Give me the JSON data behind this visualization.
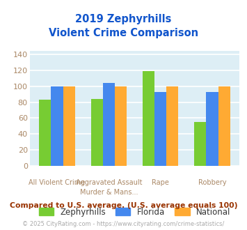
{
  "title_line1": "2019 Zephyrhills",
  "title_line2": "Violent Crime Comparison",
  "series": {
    "Zephyrhills": [
      83,
      84,
      119,
      55
    ],
    "Florida": [
      100,
      104,
      93,
      93
    ],
    "National": [
      100,
      100,
      100,
      100
    ]
  },
  "colors": {
    "Zephyrhills": "#77cc33",
    "Florida": "#4488ee",
    "National": "#ffaa33"
  },
  "ylim": [
    0,
    145
  ],
  "yticks": [
    0,
    20,
    40,
    60,
    80,
    100,
    120,
    140
  ],
  "title_color": "#1155cc",
  "bg_color": "#ddeef5",
  "grid_color": "#ffffff",
  "footnote1": "Compared to U.S. average. (U.S. average equals 100)",
  "footnote2": "© 2025 CityRating.com - https://www.cityrating.com/crime-statistics/",
  "footnote1_color": "#993300",
  "footnote2_color": "#aaaaaa",
  "tick_label_color": "#aa8866",
  "top_labels": [
    "",
    "Aggravated Assault",
    "",
    ""
  ],
  "bot_labels": [
    "All Violent Crime",
    "Murder & Mans...",
    "Rape",
    "Robbery"
  ]
}
